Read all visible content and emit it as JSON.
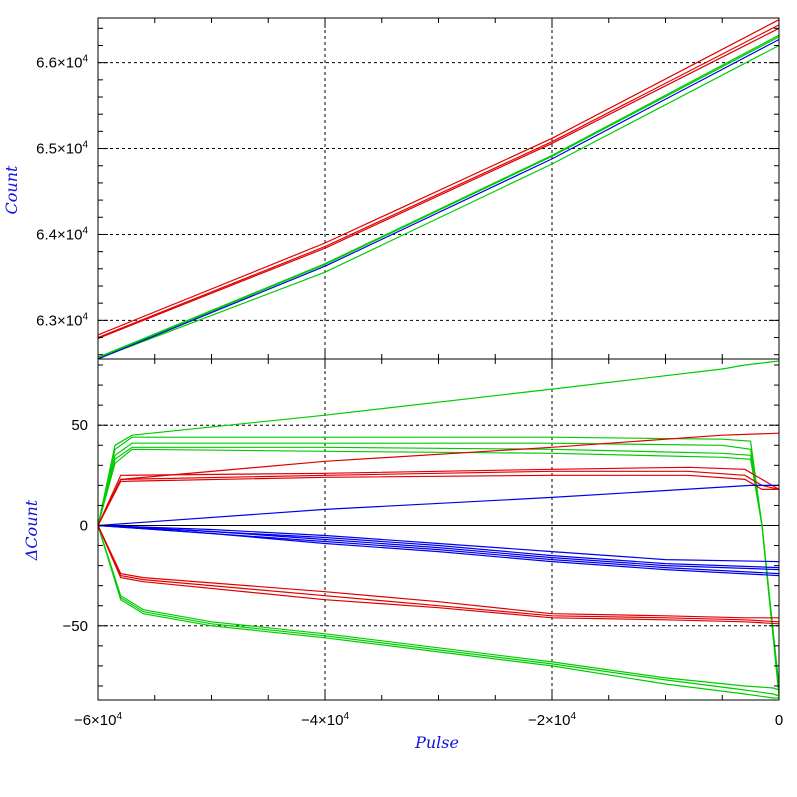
{
  "chart_data": [
    {
      "type": "line",
      "panel": "top",
      "title": "",
      "xlabel": "",
      "ylabel": "Count",
      "xlim": [
        -60000,
        0
      ],
      "ylim": [
        62550,
        66520
      ],
      "grid": true,
      "legend": "none",
      "y_ticks": [
        {
          "value": 63000,
          "mantissa": "6.3",
          "exp": "4"
        },
        {
          "value": 64000,
          "mantissa": "6.4",
          "exp": "4"
        },
        {
          "value": 65000,
          "mantissa": "6.5",
          "exp": "4"
        },
        {
          "value": 66000,
          "mantissa": "6.6",
          "exp": "4"
        }
      ],
      "series": [
        {
          "color": "#e00000",
          "x": [
            -60000,
            -40000,
            -20000,
            0
          ],
          "values": [
            62830,
            63900,
            65120,
            66500
          ]
        },
        {
          "color": "#e00000",
          "x": [
            -60000,
            -40000,
            -20000,
            0
          ],
          "values": [
            62800,
            63860,
            65080,
            66440
          ]
        },
        {
          "color": "#e00000",
          "x": [
            -60000,
            -40000,
            -20000,
            0
          ],
          "values": [
            62790,
            63840,
            65060,
            66400
          ]
        },
        {
          "color": "#00cc00",
          "x": [
            -60000,
            -40000,
            -20000,
            0
          ],
          "values": [
            62570,
            63660,
            64920,
            66320
          ]
        },
        {
          "color": "#00cc00",
          "x": [
            -60000,
            -40000,
            -20000,
            0
          ],
          "values": [
            62560,
            63650,
            64910,
            66300
          ]
        },
        {
          "color": "#00cc00",
          "x": [
            -60000,
            -40000,
            -20000,
            0
          ],
          "values": [
            62555,
            63560,
            64820,
            66200
          ]
        },
        {
          "color": "#0000ee",
          "x": [
            -60000,
            -40000,
            -20000,
            0
          ],
          "values": [
            62550,
            63630,
            64880,
            66270
          ]
        }
      ]
    },
    {
      "type": "line",
      "panel": "bottom",
      "title": "",
      "xlabel": "Pulse",
      "ylabel": "ΔCount",
      "xlim": [
        -60000,
        0
      ],
      "ylim": [
        -87,
        83
      ],
      "grid": true,
      "legend": "none",
      "x_ticks": [
        {
          "value": -60000,
          "mantissa": "−6×10",
          "exp": "4"
        },
        {
          "value": -40000,
          "mantissa": "−4×10",
          "exp": "4"
        },
        {
          "value": -20000,
          "mantissa": "−2×10",
          "exp": "4"
        },
        {
          "value": 0,
          "mantissa": "0",
          "exp": ""
        }
      ],
      "y_ticks": [
        {
          "value": -50,
          "label": "−50"
        },
        {
          "value": 0,
          "label": "0"
        },
        {
          "value": 50,
          "label": "50"
        }
      ],
      "series": [
        {
          "color": "#00cc00",
          "x": [
            -60000,
            -58500,
            -57000,
            -40000,
            -20000,
            -5000,
            -3000,
            0
          ],
          "values": [
            0,
            40,
            45,
            55,
            68,
            78,
            80,
            82
          ]
        },
        {
          "color": "#00cc00",
          "x": [
            -60000,
            -58500,
            -57000,
            -40000,
            -20000,
            -5000,
            -2500,
            -1500,
            0
          ],
          "values": [
            0,
            38,
            44,
            44,
            44,
            43,
            42,
            0,
            -80
          ]
        },
        {
          "color": "#00cc00",
          "x": [
            -60000,
            -58500,
            -57000,
            -40000,
            -20000,
            -5000,
            -2500,
            -1500,
            0
          ],
          "values": [
            0,
            35,
            41,
            41,
            41,
            40,
            38,
            0,
            -82
          ]
        },
        {
          "color": "#00cc00",
          "x": [
            -60000,
            -58500,
            -57000,
            -40000,
            -20000,
            -5000,
            -2500,
            -1500,
            0
          ],
          "values": [
            0,
            33,
            39,
            39,
            38,
            36,
            35,
            0,
            -84
          ]
        },
        {
          "color": "#00cc00",
          "x": [
            -60000,
            -58500,
            -57000,
            -40000,
            -20000,
            -5000,
            -2500,
            -1500,
            0
          ],
          "values": [
            0,
            31,
            38,
            37,
            36,
            34,
            33,
            0,
            -85
          ]
        },
        {
          "color": "#00cc00",
          "x": [
            -60000,
            -58000,
            -56000,
            -50000,
            -40000,
            -30000,
            -20000,
            -10000,
            -3000,
            -500,
            0
          ],
          "values": [
            0,
            -35,
            -42,
            -48,
            -54,
            -61,
            -68,
            -76,
            -80,
            -81,
            -82
          ]
        },
        {
          "color": "#00cc00",
          "x": [
            -60000,
            -58000,
            -56000,
            -50000,
            -40000,
            -30000,
            -20000,
            -10000,
            -3000,
            -500,
            0
          ],
          "values": [
            0,
            -36,
            -43,
            -49,
            -55,
            -62,
            -69,
            -77,
            -82,
            -84,
            -85
          ]
        },
        {
          "color": "#00cc00",
          "x": [
            -60000,
            -58000,
            -56000,
            -50000,
            -40000,
            -30000,
            -20000,
            -10000,
            -3000,
            -500,
            0
          ],
          "values": [
            0,
            -37,
            -44,
            -50,
            -56,
            -63,
            -70,
            -79,
            -84,
            -86,
            -86
          ]
        },
        {
          "color": "#e00000",
          "x": [
            -60000,
            -58000,
            -40000,
            -20000,
            -5000,
            0
          ],
          "values": [
            0,
            23,
            32,
            39,
            45,
            46
          ]
        },
        {
          "color": "#e00000",
          "x": [
            -60000,
            -58000,
            -40000,
            -20000,
            -8000,
            -3000,
            -1500,
            0
          ],
          "values": [
            0,
            25,
            26,
            28,
            29,
            28,
            23,
            18
          ]
        },
        {
          "color": "#e00000",
          "x": [
            -60000,
            -58000,
            -40000,
            -20000,
            -8000,
            -3000,
            -1500,
            0
          ],
          "values": [
            0,
            23,
            25,
            27,
            27,
            25,
            20,
            18
          ]
        },
        {
          "color": "#e00000",
          "x": [
            -60000,
            -58000,
            -40000,
            -20000,
            -8000,
            -3000,
            -1500,
            0
          ],
          "values": [
            0,
            22,
            24,
            25,
            25,
            23,
            18,
            18
          ]
        },
        {
          "color": "#e00000",
          "x": [
            -60000,
            -58000,
            -56000,
            -40000,
            -30000,
            -20000,
            -10000,
            -3000,
            0
          ],
          "values": [
            0,
            -24,
            -26,
            -33,
            -38,
            -44,
            -45,
            -46,
            -46
          ]
        },
        {
          "color": "#e00000",
          "x": [
            -60000,
            -58000,
            -56000,
            -40000,
            -30000,
            -20000,
            -10000,
            -3000,
            0
          ],
          "values": [
            0,
            -25,
            -27,
            -35,
            -40,
            -45,
            -46,
            -47,
            -48
          ]
        },
        {
          "color": "#e00000",
          "x": [
            -60000,
            -58000,
            -56000,
            -40000,
            -30000,
            -20000,
            -10000,
            -3000,
            0
          ],
          "values": [
            0,
            -26,
            -28,
            -37,
            -41,
            -46,
            -47,
            -48,
            -49
          ]
        },
        {
          "color": "#0000ee",
          "x": [
            -60000,
            -40000,
            -20000,
            -2500,
            0
          ],
          "values": [
            0,
            8,
            14,
            20,
            20
          ]
        },
        {
          "color": "#0000ee",
          "x": [
            -60000,
            -50000,
            -40000,
            -30000,
            -20000,
            -10000,
            0
          ],
          "values": [
            0,
            -2,
            -5,
            -9,
            -13,
            -17,
            -18
          ]
        },
        {
          "color": "#0000ee",
          "x": [
            -60000,
            -50000,
            -40000,
            -30000,
            -20000,
            -10000,
            0
          ],
          "values": [
            0,
            -3,
            -6,
            -10,
            -15,
            -19,
            -21
          ]
        },
        {
          "color": "#0000ee",
          "x": [
            -60000,
            -50000,
            -40000,
            -30000,
            -20000,
            -10000,
            0
          ],
          "values": [
            0,
            -3,
            -7,
            -11,
            -16,
            -20,
            -22
          ]
        },
        {
          "color": "#0000ee",
          "x": [
            -60000,
            -50000,
            -40000,
            -30000,
            -20000,
            -10000,
            0
          ],
          "values": [
            0,
            -4,
            -8,
            -12,
            -17,
            -21,
            -24
          ]
        },
        {
          "color": "#0000ee",
          "x": [
            -60000,
            -50000,
            -40000,
            -30000,
            -20000,
            -10000,
            0
          ],
          "values": [
            0,
            -4,
            -9,
            -13,
            -18,
            -22,
            -25
          ]
        }
      ]
    }
  ]
}
